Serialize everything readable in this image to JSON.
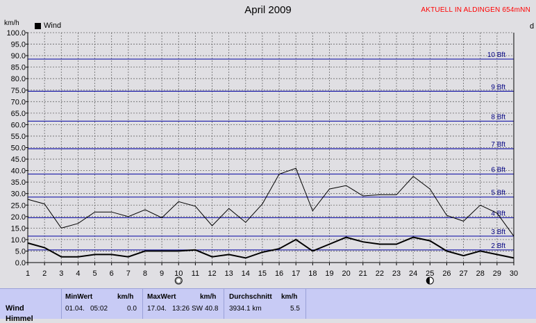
{
  "title": "April 2009",
  "station": "AKTUELL IN ALDINGEN 654mNN",
  "y_unit": "km/h",
  "right_unit": "d",
  "legend": {
    "label": "Wind"
  },
  "colors": {
    "background": "#e0dfe3",
    "bft_lines": "#1a1aa8",
    "bft_text": "#000080",
    "series": "#000000",
    "table_bg": "#c8cbf5"
  },
  "moon_icons": [
    {
      "day": 10,
      "icon": "full-moon-icon"
    },
    {
      "day": 25,
      "icon": "new-moon-icon"
    }
  ],
  "table": {
    "row_label": "Wind",
    "row_label_2": "Himmel",
    "min": {
      "header": "MinWert",
      "unit": "km/h",
      "date": "01.04.",
      "time": "05:02",
      "value": "0.0"
    },
    "max": {
      "header": "MaxWert",
      "unit": "km/h",
      "date": "17.04.",
      "time": "13:26",
      "dir": "SW",
      "value": "40.8"
    },
    "avg": {
      "header": "Durchschnitt",
      "unit": "km/h",
      "distance": "3934.1 km",
      "value": "5.5"
    }
  },
  "chart_data": {
    "type": "line",
    "x": [
      1,
      2,
      3,
      4,
      5,
      6,
      7,
      8,
      9,
      10,
      11,
      12,
      13,
      14,
      15,
      16,
      17,
      18,
      19,
      20,
      21,
      22,
      23,
      24,
      25,
      26,
      27,
      28,
      29,
      30
    ],
    "ylim": [
      0,
      100
    ],
    "yticks": [
      "0.0",
      "5.0",
      "10.0",
      "15.0",
      "20.0",
      "25.0",
      "30.0",
      "35.0",
      "40.0",
      "45.0",
      "50.0",
      "55.0",
      "60.0",
      "65.0",
      "70.0",
      "75.0",
      "80.0",
      "85.0",
      "90.0",
      "95.0",
      "100.0"
    ],
    "xticks": [
      "1",
      "2",
      "3",
      "4",
      "5",
      "6",
      "7",
      "8",
      "9",
      "10",
      "11",
      "12",
      "13",
      "14",
      "15",
      "16",
      "17",
      "18",
      "19",
      "20",
      "21",
      "22",
      "23",
      "24",
      "25",
      "26",
      "27",
      "28",
      "29",
      "30"
    ],
    "grid": true,
    "legend": "top-left",
    "beaufort": [
      {
        "label": "2 Bft",
        "value": 5.5
      },
      {
        "label": "3 Bft",
        "value": 11.5
      },
      {
        "label": "4 Bft",
        "value": 19.5
      },
      {
        "label": "5 Bft",
        "value": 28.5
      },
      {
        "label": "6 Bft",
        "value": 38.5
      },
      {
        "label": "7 Bft",
        "value": 49.5
      },
      {
        "label": "8 Bft",
        "value": 61.5
      },
      {
        "label": "9 Bft",
        "value": 74.5
      },
      {
        "label": "10 Bft",
        "value": 88.5
      }
    ],
    "series": [
      {
        "name": "Wind",
        "role": "gust",
        "values": [
          27.5,
          25.5,
          15.0,
          17.0,
          22.0,
          22.0,
          20.0,
          23.0,
          19.5,
          26.5,
          24.5,
          16.0,
          23.5,
          17.5,
          25.5,
          38.5,
          41.0,
          22.5,
          32.0,
          33.5,
          29.0,
          29.5,
          29.5,
          37.5,
          32.0,
          20.5,
          18.0,
          25.0,
          21.5,
          11.5
        ]
      },
      {
        "name": "Wind",
        "role": "average",
        "values": [
          8.5,
          6.5,
          2.5,
          2.5,
          3.5,
          3.5,
          2.5,
          5.0,
          5.0,
          5.0,
          5.5,
          2.5,
          3.5,
          2.0,
          4.5,
          6.0,
          10.0,
          5.0,
          8.0,
          11.0,
          9.0,
          8.0,
          8.0,
          11.0,
          9.5,
          5.0,
          3.0,
          5.0,
          3.5,
          2.0
        ]
      }
    ]
  }
}
